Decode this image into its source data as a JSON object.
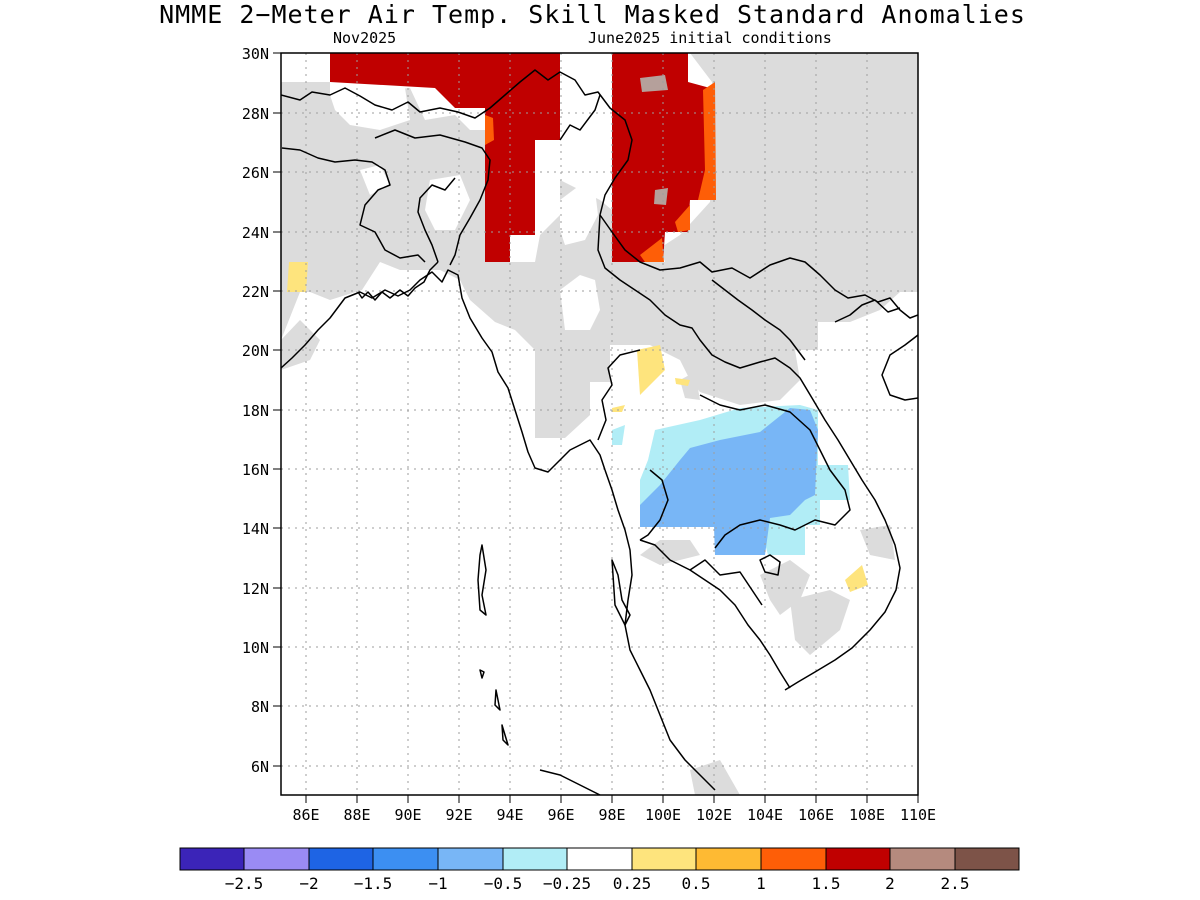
{
  "title": "NMME 2−Meter Air Temp. Skill Masked Standard Anomalies",
  "subtitle_left": "Nov2025",
  "subtitle_right": "June2025 initial conditions",
  "map": {
    "lon_range": [
      85,
      110
    ],
    "lat_range": [
      5,
      30
    ],
    "lat_ticks": [
      "30N",
      "28N",
      "26N",
      "24N",
      "22N",
      "20N",
      "18N",
      "16N",
      "14N",
      "12N",
      "10N",
      "8N",
      "6N"
    ],
    "lon_ticks": [
      "86E",
      "88E",
      "90E",
      "92E",
      "94E",
      "96E",
      "98E",
      "100E",
      "102E",
      "104E",
      "106E",
      "108E",
      "110E"
    ]
  },
  "colorbar": {
    "colors": [
      "#3b24b8",
      "#9a8bf4",
      "#1e64e4",
      "#3c8ff2",
      "#78b6f6",
      "#b1edf6",
      "#ffffff",
      "#fee47d",
      "#feba33",
      "#fe5e07",
      "#c00000",
      "#b58a7e",
      "#7d5348"
    ],
    "labels": [
      "−2.5",
      "−2",
      "−1.5",
      "−1",
      "−0.5",
      "−0.25",
      "0.25",
      "0.5",
      "1",
      "1.5",
      "2",
      "2.5"
    ]
  },
  "colors": {
    "masked": "#dcdcdc",
    "coast": "#000000",
    "grid": "#9e9e9e"
  }
}
